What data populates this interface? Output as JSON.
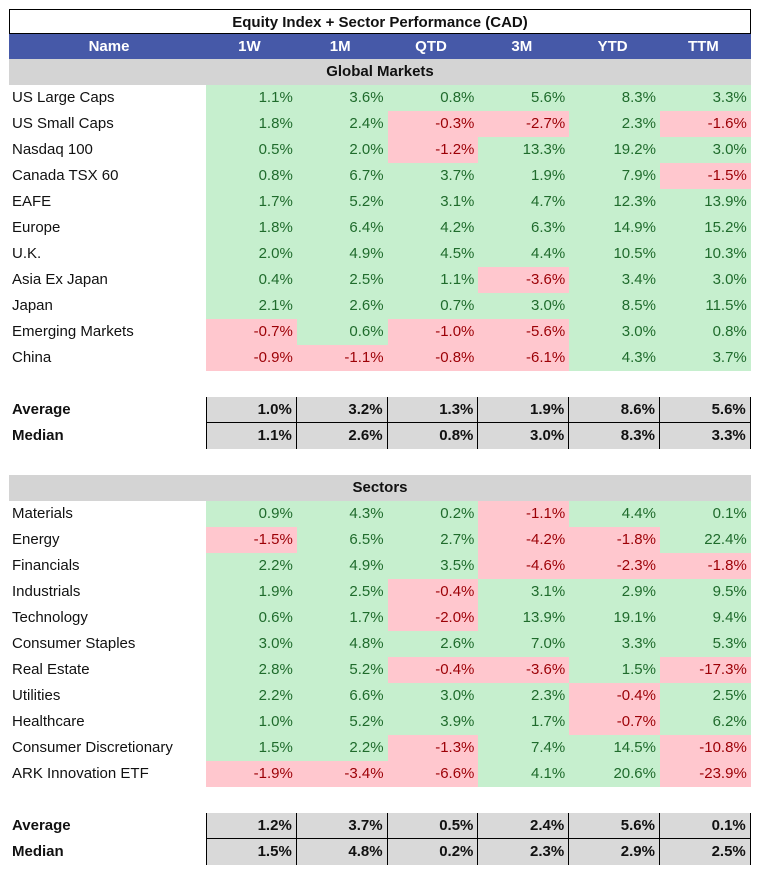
{
  "title": "Equity Index + Sector Performance (CAD)",
  "columns": [
    "Name",
    "1W",
    "1M",
    "QTD",
    "3M",
    "YTD",
    "TTM"
  ],
  "sections": [
    {
      "label": "Global Markets",
      "rows": [
        {
          "name": "US Large Caps",
          "values": [
            "1.1%",
            "3.6%",
            "0.8%",
            "5.6%",
            "8.3%",
            "3.3%"
          ]
        },
        {
          "name": "US Small Caps",
          "values": [
            "1.8%",
            "2.4%",
            "-0.3%",
            "-2.7%",
            "2.3%",
            "-1.6%"
          ]
        },
        {
          "name": "Nasdaq 100",
          "values": [
            "0.5%",
            "2.0%",
            "-1.2%",
            "13.3%",
            "19.2%",
            "3.0%"
          ]
        },
        {
          "name": "Canada TSX 60",
          "values": [
            "0.8%",
            "6.7%",
            "3.7%",
            "1.9%",
            "7.9%",
            "-1.5%"
          ]
        },
        {
          "name": "EAFE",
          "values": [
            "1.7%",
            "5.2%",
            "3.1%",
            "4.7%",
            "12.3%",
            "13.9%"
          ]
        },
        {
          "name": "Europe",
          "values": [
            "1.8%",
            "6.4%",
            "4.2%",
            "6.3%",
            "14.9%",
            "15.2%"
          ]
        },
        {
          "name": "U.K.",
          "values": [
            "2.0%",
            "4.9%",
            "4.5%",
            "4.4%",
            "10.5%",
            "10.3%"
          ]
        },
        {
          "name": "Asia Ex Japan",
          "values": [
            "0.4%",
            "2.5%",
            "1.1%",
            "-3.6%",
            "3.4%",
            "3.0%"
          ]
        },
        {
          "name": "Japan",
          "values": [
            "2.1%",
            "2.6%",
            "0.7%",
            "3.0%",
            "8.5%",
            "11.5%"
          ]
        },
        {
          "name": "Emerging Markets",
          "values": [
            "-0.7%",
            "0.6%",
            "-1.0%",
            "-5.6%",
            "3.0%",
            "0.8%"
          ]
        },
        {
          "name": "China",
          "values": [
            "-0.9%",
            "-1.1%",
            "-0.8%",
            "-6.1%",
            "4.3%",
            "3.7%"
          ]
        }
      ],
      "stats": [
        {
          "name": "Average",
          "values": [
            "1.0%",
            "3.2%",
            "1.3%",
            "1.9%",
            "8.6%",
            "5.6%"
          ]
        },
        {
          "name": "Median",
          "values": [
            "1.1%",
            "2.6%",
            "0.8%",
            "3.0%",
            "8.3%",
            "3.3%"
          ]
        }
      ]
    },
    {
      "label": "Sectors",
      "rows": [
        {
          "name": "Materials",
          "values": [
            "0.9%",
            "4.3%",
            "0.2%",
            "-1.1%",
            "4.4%",
            "0.1%"
          ]
        },
        {
          "name": "Energy",
          "values": [
            "-1.5%",
            "6.5%",
            "2.7%",
            "-4.2%",
            "-1.8%",
            "22.4%"
          ]
        },
        {
          "name": "Financials",
          "values": [
            "2.2%",
            "4.9%",
            "3.5%",
            "-4.6%",
            "-2.3%",
            "-1.8%"
          ]
        },
        {
          "name": "Industrials",
          "values": [
            "1.9%",
            "2.5%",
            "-0.4%",
            "3.1%",
            "2.9%",
            "9.5%"
          ]
        },
        {
          "name": "Technology",
          "values": [
            "0.6%",
            "1.7%",
            "-2.0%",
            "13.9%",
            "19.1%",
            "9.4%"
          ]
        },
        {
          "name": "Consumer Staples",
          "values": [
            "3.0%",
            "4.8%",
            "2.6%",
            "7.0%",
            "3.3%",
            "5.3%"
          ]
        },
        {
          "name": "Real Estate",
          "values": [
            "2.8%",
            "5.2%",
            "-0.4%",
            "-3.6%",
            "1.5%",
            "-17.3%"
          ]
        },
        {
          "name": "Utilities",
          "values": [
            "2.2%",
            "6.6%",
            "3.0%",
            "2.3%",
            "-0.4%",
            "2.5%"
          ]
        },
        {
          "name": "Healthcare",
          "values": [
            "1.0%",
            "5.2%",
            "3.9%",
            "1.7%",
            "-0.7%",
            "6.2%"
          ]
        },
        {
          "name": "Consumer Discretionary",
          "values": [
            "1.5%",
            "2.2%",
            "-1.3%",
            "7.4%",
            "14.5%",
            "-10.8%"
          ]
        },
        {
          "name": "ARK Innovation ETF",
          "values": [
            "-1.9%",
            "-3.4%",
            "-6.6%",
            "4.1%",
            "20.6%",
            "-23.9%"
          ]
        }
      ],
      "stats": [
        {
          "name": "Average",
          "values": [
            "1.2%",
            "3.7%",
            "0.5%",
            "2.4%",
            "5.6%",
            "0.1%"
          ]
        },
        {
          "name": "Median",
          "values": [
            "1.5%",
            "4.8%",
            "0.2%",
            "2.3%",
            "2.9%",
            "2.5%"
          ]
        }
      ]
    }
  ],
  "colors": {
    "header_bg": "#4659a8",
    "section_bg": "#d4d4d4",
    "positive_bg": "#c6efce",
    "positive_text": "#1f6b2c",
    "negative_bg": "#ffc7ce",
    "negative_text": "#9c0006",
    "stats_bg": "#d9d9d9"
  }
}
